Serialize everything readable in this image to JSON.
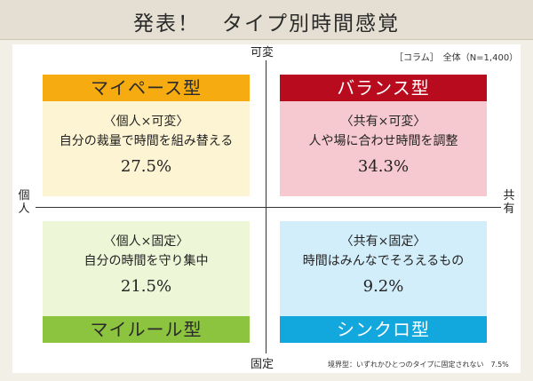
{
  "title": "発表！　タイプ別時間感覚",
  "axes": {
    "top": "可変",
    "bottom": "固定",
    "left": "個人",
    "right": "共有"
  },
  "notes": {
    "source": "［コラム］　全体（N=1,400）",
    "footnote": "境界型：いずれかひとつのタイプに固定されない　7.5%"
  },
  "quadrants": {
    "top_left": {
      "name": "マイペース型",
      "sub": "〈個人×可変〉",
      "desc": "自分の裁量で時間を組み替える",
      "pct": "27.5%",
      "colors": {
        "header": "#f6ab10",
        "body": "#fdf4d3"
      }
    },
    "top_right": {
      "name": "バランス型",
      "sub": "〈共有×可変〉",
      "desc": "人や場に合わせ時間を調整",
      "pct": "34.3%",
      "colors": {
        "header": "#b80c1e",
        "body": "#f5c9cf"
      }
    },
    "bottom_left": {
      "name": "マイルール型",
      "sub": "〈個人×固定〉",
      "desc": "自分の時間を守り集中",
      "pct": "21.5%",
      "colors": {
        "header": "#8cc33f",
        "body": "#eef6d8"
      }
    },
    "bottom_right": {
      "name": "シンクロ型",
      "sub": "〈共有×固定〉",
      "desc": "時間はみんなでそろえるもの",
      "pct": "9.2%",
      "colors": {
        "header": "#12a7dd",
        "body": "#d3eefb"
      }
    }
  }
}
